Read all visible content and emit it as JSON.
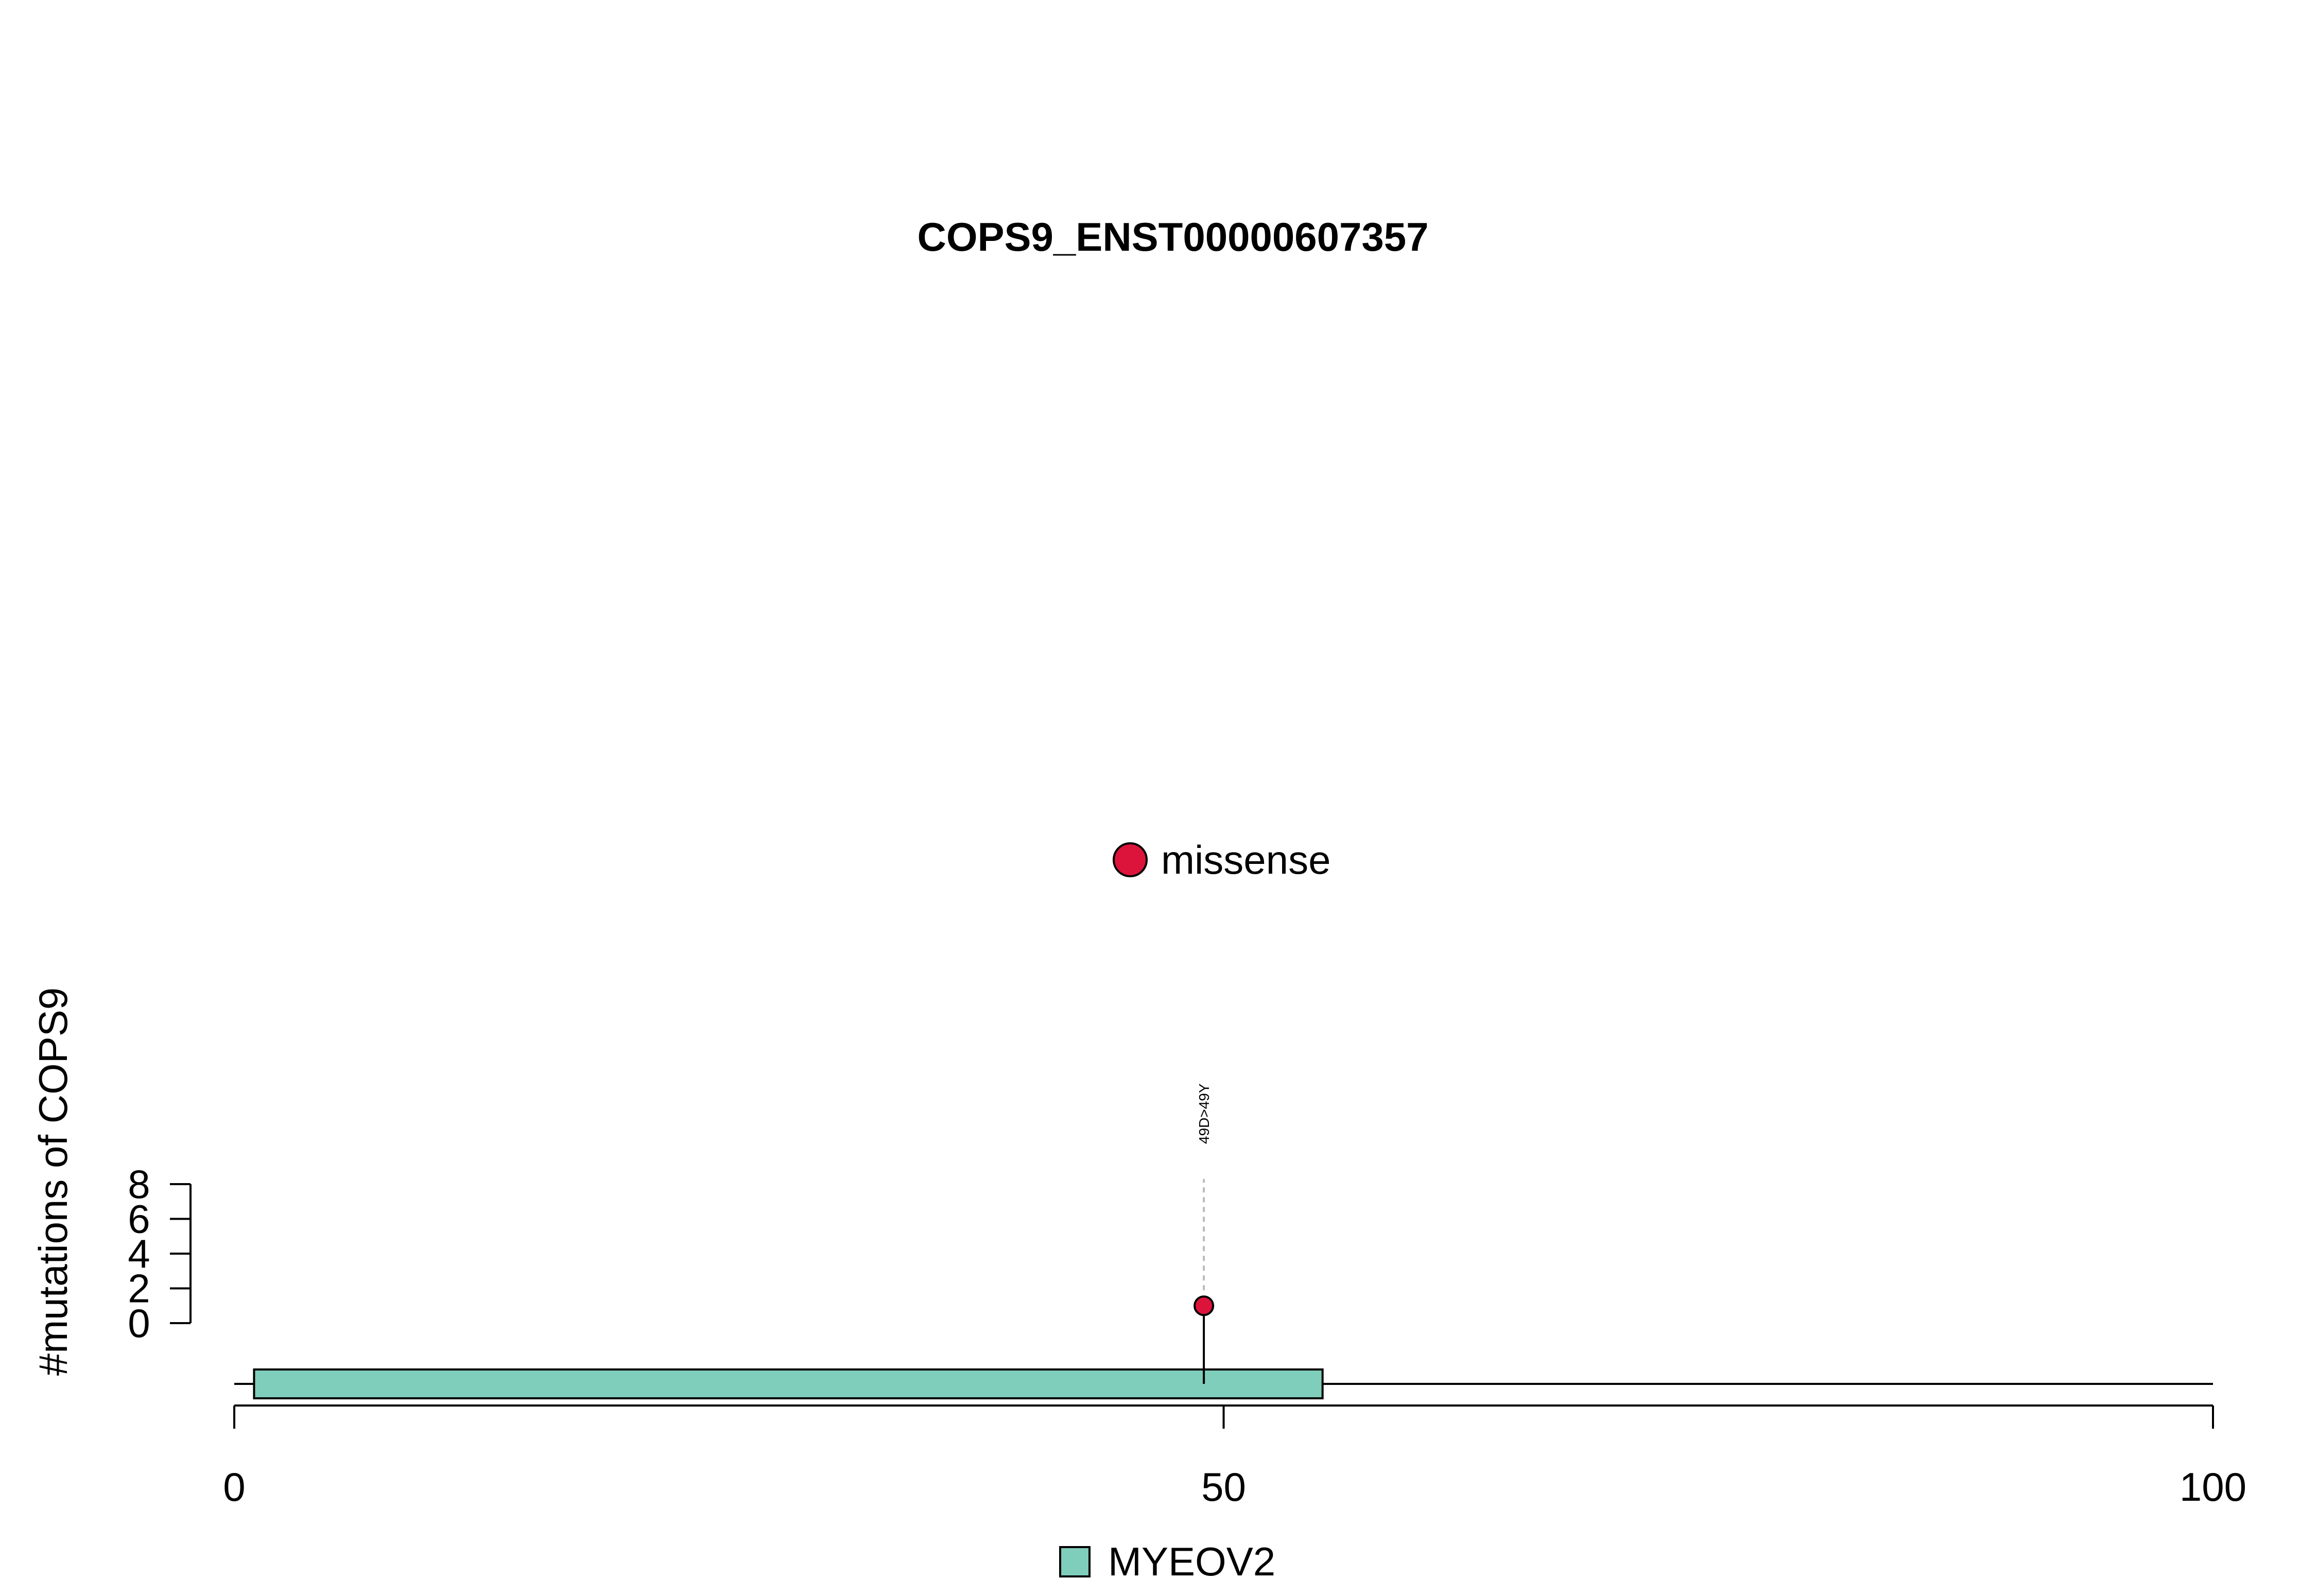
{
  "chart_data": {
    "type": "lollipop",
    "title": "COPS9_ENST00000607357",
    "ylabel": "#mutations of COPS9",
    "xlim": [
      0,
      100
    ],
    "ylim": [
      0,
      8
    ],
    "x_ticks": [
      0,
      50,
      100
    ],
    "y_ticks": [
      0,
      2,
      4,
      6,
      8
    ],
    "protein_length": 100,
    "domains": [
      {
        "name": "MYEOV2",
        "start": 1,
        "end": 55,
        "color": "#7FCDBB"
      }
    ],
    "mutation_legend": [
      {
        "label": "missense",
        "color": "#DC143C"
      }
    ],
    "mutations": [
      {
        "position": 49,
        "count": 1,
        "type": "missense",
        "label": "49D>49Y"
      }
    ]
  },
  "colors": {
    "missense": "#DC143C",
    "domain": "#7FCDBB",
    "label_line": "#BBBBBB"
  }
}
